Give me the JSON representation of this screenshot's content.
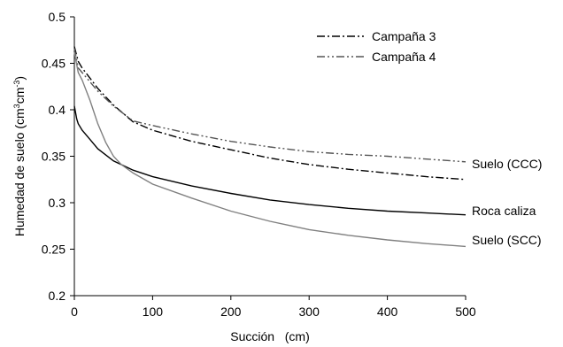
{
  "chart_data": {
    "type": "line",
    "xlabel": "Succión   (cm)",
    "ylabel_parts": [
      "Humedad de suelo (cm",
      "3",
      "cm",
      "-3",
      ")"
    ],
    "xlim": [
      0,
      500
    ],
    "ylim": [
      0.2,
      0.5
    ],
    "xticks": [
      "0",
      "100",
      "200",
      "300",
      "400",
      "500"
    ],
    "yticks": [
      "0.2",
      "0.25",
      "0.3",
      "0.35",
      "0.4",
      "0.45",
      "0.5"
    ],
    "grid": false,
    "legend_position": "top-right",
    "series": [
      {
        "name": "Campaña 3",
        "color": "#000000",
        "dash": "dash-dot",
        "x": [
          0,
          5,
          10,
          20,
          30,
          50,
          75,
          100,
          150,
          200,
          250,
          300,
          350,
          400,
          450,
          500
        ],
        "y": [
          0.468,
          0.452,
          0.445,
          0.434,
          0.423,
          0.405,
          0.387,
          0.378,
          0.366,
          0.357,
          0.348,
          0.341,
          0.336,
          0.332,
          0.328,
          0.325
        ]
      },
      {
        "name": "Campaña 4",
        "color": "#555555",
        "dash": "dash-dot-dot",
        "x": [
          0,
          5,
          10,
          20,
          30,
          50,
          75,
          100,
          150,
          200,
          250,
          300,
          350,
          400,
          450,
          500
        ],
        "y": [
          0.466,
          0.445,
          0.44,
          0.43,
          0.42,
          0.404,
          0.388,
          0.383,
          0.374,
          0.366,
          0.36,
          0.355,
          0.352,
          0.35,
          0.347,
          0.344
        ]
      },
      {
        "name": "",
        "color": "#000000",
        "dash": "solid",
        "x": [
          0,
          3,
          5,
          10,
          20,
          30,
          50,
          75,
          100,
          150,
          200,
          250,
          300,
          350,
          400,
          450,
          500
        ],
        "y": [
          0.404,
          0.39,
          0.385,
          0.378,
          0.368,
          0.358,
          0.345,
          0.335,
          0.328,
          0.318,
          0.31,
          0.303,
          0.298,
          0.294,
          0.291,
          0.289,
          0.287
        ]
      },
      {
        "name": "",
        "color": "#808080",
        "dash": "solid",
        "x": [
          0,
          5,
          10,
          20,
          30,
          40,
          50,
          60,
          75,
          100,
          150,
          200,
          250,
          300,
          350,
          400,
          450,
          500
        ],
        "y": [
          0.462,
          0.44,
          0.432,
          0.41,
          0.385,
          0.365,
          0.35,
          0.341,
          0.332,
          0.32,
          0.305,
          0.291,
          0.28,
          0.271,
          0.265,
          0.26,
          0.256,
          0.253
        ]
      }
    ],
    "annotations": [
      {
        "text": "Suelo (CCC)",
        "x": 510,
        "y": 0.341
      },
      {
        "text": "Roca caliza",
        "x": 510,
        "y": 0.284
      },
      {
        "text": "Suelo (SCC)",
        "x": 510,
        "y": 0.256
      }
    ]
  }
}
